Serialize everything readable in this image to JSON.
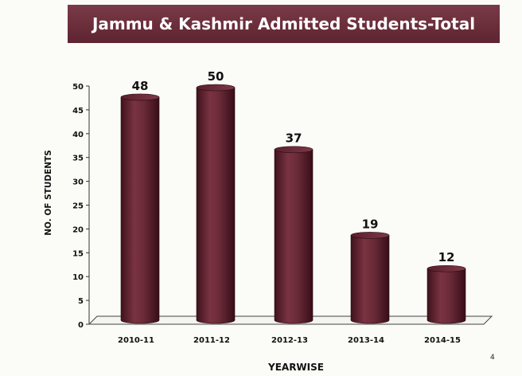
{
  "page": {
    "number": "4"
  },
  "chart_data": {
    "type": "bar",
    "title": "Jammu & Kashmir Admitted Students-Total",
    "xlabel": "YEARWISE",
    "ylabel": "NO. OF STUDENTS",
    "categories": [
      "2010-11",
      "2011-12",
      "2012-13",
      "2013-14",
      "2014-15"
    ],
    "values": [
      48,
      50,
      37,
      19,
      12
    ],
    "ylim": [
      0,
      50
    ],
    "yticks": [
      0,
      5,
      10,
      15,
      20,
      25,
      30,
      35,
      40,
      45,
      50
    ],
    "grid": false,
    "legend": "none",
    "bar_color": "#6b2d3a",
    "bar_style": "3d-cylinder"
  }
}
